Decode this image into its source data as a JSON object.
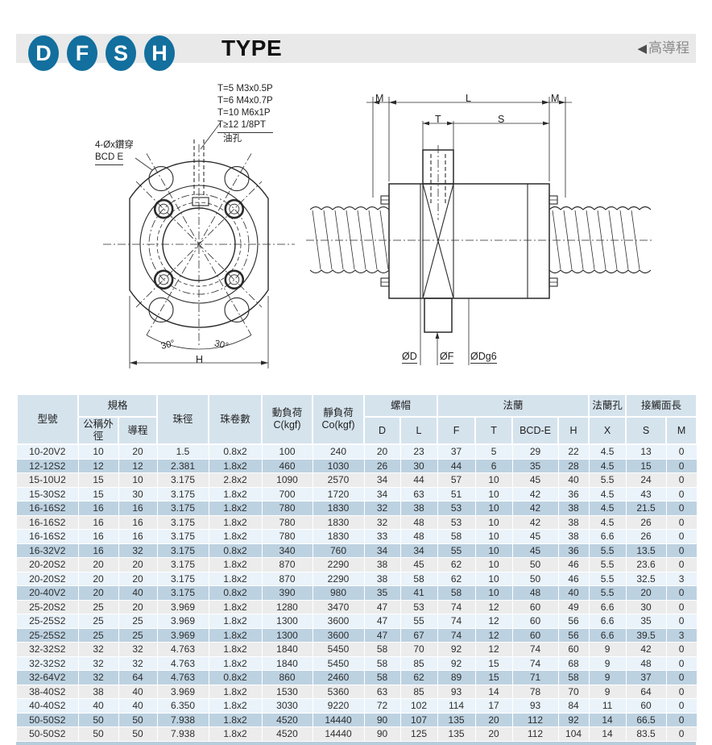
{
  "header": {
    "badges": [
      "D",
      "F",
      "S",
      "H"
    ],
    "title": "TYPE",
    "tag_arrow": "◀",
    "tag": "高導程",
    "badge_color": "#126f9e",
    "banner_bg": "#e9e9e9"
  },
  "drawings": {
    "front_view": {
      "thread_specs": [
        "T=5 M3x0.5P",
        "T=6 M4x0.7P",
        "T=10 M6x1P",
        "T≥12 1/8PT"
      ],
      "oil_hole": "油孔",
      "drill_note": "4-Øx鑽穿",
      "bcd_note": "BCD E",
      "angle_left": "30°",
      "angle_right": "30°",
      "dim_h": "H"
    },
    "side_view": {
      "dim_m_left": "M",
      "dim_l": "L",
      "dim_m_right": "M",
      "dim_t": "T",
      "dim_s": "S",
      "dia_d": "ØD",
      "dia_f": "ØF",
      "dia_dg6": "ØDg6"
    }
  },
  "table": {
    "headers": {
      "model": "型號",
      "spec_group": "規格",
      "od": "公稱外徑",
      "lead": "導程",
      "ball_dia": "珠徑",
      "circuits": "珠卷數",
      "dyn_load_1": "動負荷",
      "dyn_load_2": "C(kgf)",
      "static_load_1": "靜負荷",
      "static_load_2": "Co(kgf)",
      "nut_group": "螺帽",
      "flange_group": "法蘭",
      "flange_hole_group": "法蘭孔",
      "contact_group": "接觸面長",
      "sub": [
        "D",
        "L",
        "F",
        "T",
        "BCD-E",
        "H",
        "X",
        "S",
        "M"
      ]
    },
    "row_colors": {
      "light": "#eaf3fa",
      "medium": "#bdd2e1",
      "gray": "#ececec",
      "header": "#d5e3ed"
    },
    "rows": [
      [
        "10-20V2",
        "10",
        "20",
        "1.5",
        "0.8x2",
        "100",
        "240",
        "20",
        "23",
        "37",
        "5",
        "29",
        "22",
        "4.5",
        "13",
        "0"
      ],
      [
        "12-12S2",
        "12",
        "12",
        "2.381",
        "1.8x2",
        "460",
        "1030",
        "26",
        "30",
        "44",
        "6",
        "35",
        "28",
        "4.5",
        "15",
        "0"
      ],
      [
        "15-10U2",
        "15",
        "10",
        "3.175",
        "2.8x2",
        "1090",
        "2570",
        "34",
        "44",
        "57",
        "10",
        "45",
        "40",
        "5.5",
        "24",
        "0"
      ],
      [
        "15-30S2",
        "15",
        "30",
        "3.175",
        "1.8x2",
        "700",
        "1720",
        "34",
        "63",
        "51",
        "10",
        "42",
        "36",
        "4.5",
        "43",
        "0"
      ],
      [
        "16-16S2",
        "16",
        "16",
        "3.175",
        "1.8x2",
        "780",
        "1830",
        "32",
        "38",
        "53",
        "10",
        "42",
        "38",
        "4.5",
        "21.5",
        "0"
      ],
      [
        "16-16S2",
        "16",
        "16",
        "3.175",
        "1.8x2",
        "780",
        "1830",
        "32",
        "48",
        "53",
        "10",
        "42",
        "38",
        "4.5",
        "26",
        "0"
      ],
      [
        "16-16S2",
        "16",
        "16",
        "3.175",
        "1.8x2",
        "780",
        "1830",
        "33",
        "48",
        "58",
        "10",
        "45",
        "38",
        "6.6",
        "26",
        "0"
      ],
      [
        "16-32V2",
        "16",
        "32",
        "3.175",
        "0.8x2",
        "340",
        "760",
        "34",
        "34",
        "55",
        "10",
        "45",
        "36",
        "5.5",
        "13.5",
        "0"
      ],
      [
        "20-20S2",
        "20",
        "20",
        "3.175",
        "1.8x2",
        "870",
        "2290",
        "38",
        "45",
        "62",
        "10",
        "50",
        "46",
        "5.5",
        "23.6",
        "0"
      ],
      [
        "20-20S2",
        "20",
        "20",
        "3.175",
        "1.8x2",
        "870",
        "2290",
        "38",
        "58",
        "62",
        "10",
        "50",
        "46",
        "5.5",
        "32.5",
        "3"
      ],
      [
        "20-40V2",
        "20",
        "40",
        "3.175",
        "0.8x2",
        "390",
        "980",
        "35",
        "41",
        "58",
        "10",
        "48",
        "40",
        "5.5",
        "20",
        "0"
      ],
      [
        "25-20S2",
        "25",
        "20",
        "3.969",
        "1.8x2",
        "1280",
        "3470",
        "47",
        "53",
        "74",
        "12",
        "60",
        "49",
        "6.6",
        "30",
        "0"
      ],
      [
        "25-25S2",
        "25",
        "25",
        "3.969",
        "1.8x2",
        "1300",
        "3600",
        "47",
        "55",
        "74",
        "12",
        "60",
        "56",
        "6.6",
        "35",
        "0"
      ],
      [
        "25-25S2",
        "25",
        "25",
        "3.969",
        "1.8x2",
        "1300",
        "3600",
        "47",
        "67",
        "74",
        "12",
        "60",
        "56",
        "6.6",
        "39.5",
        "3"
      ],
      [
        "32-32S2",
        "32",
        "32",
        "4.763",
        "1.8x2",
        "1840",
        "5450",
        "58",
        "70",
        "92",
        "12",
        "74",
        "60",
        "9",
        "42",
        "0"
      ],
      [
        "32-32S2",
        "32",
        "32",
        "4.763",
        "1.8x2",
        "1840",
        "5450",
        "58",
        "85",
        "92",
        "15",
        "74",
        "68",
        "9",
        "48",
        "0"
      ],
      [
        "32-64V2",
        "32",
        "64",
        "4.763",
        "0.8x2",
        "860",
        "2460",
        "58",
        "62",
        "89",
        "15",
        "71",
        "58",
        "9",
        "37",
        "0"
      ],
      [
        "38-40S2",
        "38",
        "40",
        "3.969",
        "1.8x2",
        "1530",
        "5360",
        "63",
        "85",
        "93",
        "14",
        "78",
        "70",
        "9",
        "64",
        "0"
      ],
      [
        "40-40S2",
        "40",
        "40",
        "6.350",
        "1.8x2",
        "3030",
        "9220",
        "72",
        "102",
        "114",
        "17",
        "93",
        "84",
        "11",
        "60",
        "0"
      ],
      [
        "50-50S2",
        "50",
        "50",
        "7.938",
        "1.8x2",
        "4520",
        "14440",
        "90",
        "107",
        "135",
        "20",
        "112",
        "92",
        "14",
        "66.5",
        "0"
      ],
      [
        "50-50S2",
        "50",
        "50",
        "7.938",
        "1.8x2",
        "4520",
        "14440",
        "90",
        "125",
        "135",
        "20",
        "112",
        "104",
        "14",
        "83.5",
        "0"
      ]
    ]
  }
}
